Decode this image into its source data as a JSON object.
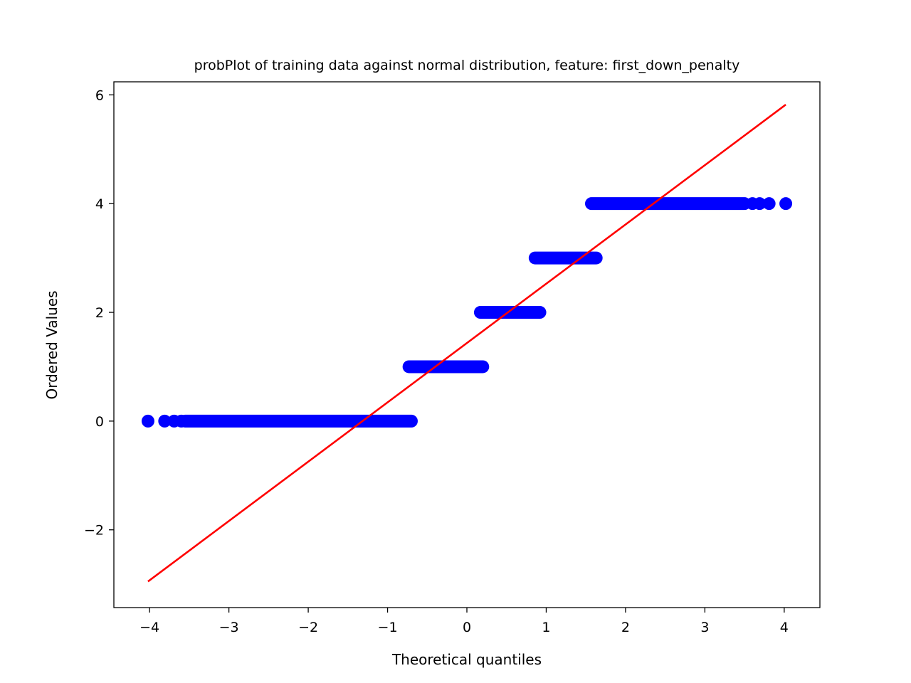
{
  "chart_data": {
    "type": "scatter",
    "title": "probPlot of training data against normal distribution, feature: first_down_penalty",
    "xlabel": "Theoretical quantiles",
    "ylabel": "Ordered Values",
    "xlim": [
      -4.45,
      4.45
    ],
    "ylim": [
      -3.43,
      6.24
    ],
    "xticks": [
      -4,
      -3,
      -2,
      -1,
      0,
      1,
      2,
      3,
      4
    ],
    "xtick_labels": [
      "−4",
      "−3",
      "−2",
      "−1",
      "0",
      "1",
      "2",
      "3",
      "4"
    ],
    "yticks": [
      -2,
      0,
      2,
      4,
      6
    ],
    "ytick_labels": [
      "−2",
      "0",
      "2",
      "4",
      "6"
    ],
    "grid": false,
    "legend": "none",
    "series": [
      {
        "kind": "points",
        "color": "#0000ff",
        "runs": [
          {
            "y": 0,
            "x_from": -3.55,
            "x_to": -0.7
          },
          {
            "y": 1,
            "x_from": -0.73,
            "x_to": 0.2
          },
          {
            "y": 2,
            "x_from": 0.17,
            "x_to": 0.92
          },
          {
            "y": 3,
            "x_from": 0.86,
            "x_to": 1.63
          },
          {
            "y": 4,
            "x_from": 1.57,
            "x_to": 3.5
          }
        ],
        "isolated_points": [
          {
            "x": -4.02,
            "y": 0
          },
          {
            "x": -3.81,
            "y": 0
          },
          {
            "x": -3.69,
            "y": 0
          },
          {
            "x": -3.6,
            "y": 0
          },
          {
            "x": 3.6,
            "y": 4
          },
          {
            "x": 3.69,
            "y": 4
          },
          {
            "x": 3.81,
            "y": 4
          },
          {
            "x": 4.02,
            "y": 4
          }
        ]
      },
      {
        "kind": "line",
        "color": "#ff0000",
        "points": [
          {
            "x": -4.02,
            "y": -2.95
          },
          {
            "x": 4.02,
            "y": 5.82
          }
        ]
      }
    ]
  }
}
